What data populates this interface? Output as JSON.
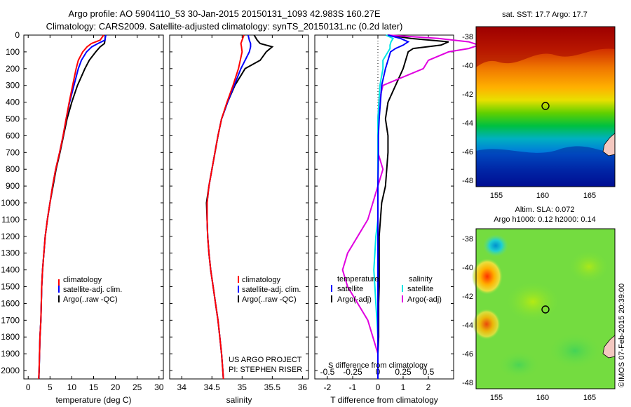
{
  "titles": {
    "line1": "Argo profile: AO 5904110_53 30-Jan-2015 20150131_1093 42.983S 160.27E",
    "line2": "Climatology: CARS2009. Satellite-adjusted climatology: synTS_20150131.nc (0.2d later)"
  },
  "colors": {
    "climatology": "#ff0000",
    "satellite": "#0000ff",
    "argo": "#000000",
    "sal_satellite": "#00e5e5",
    "sal_argo": "#e000e0"
  },
  "panels": {
    "temperature": {
      "xlabel": "temperature (deg C)",
      "legend": [
        "climatology",
        "satellite-adj. clim.",
        "Argo(..raw -QC)"
      ]
    },
    "salinity": {
      "xlabel": "salinity",
      "legend": [
        "climatology",
        "satellite-adj. clim.",
        "Argo(..raw -QC)"
      ],
      "credit1": "US ARGO PROJECT",
      "credit2": "PI: STEPHEN RISER"
    },
    "difference": {
      "xlabel": "T difference from climatology",
      "s_label": "S difference from climatology",
      "legend_t_title": "temperature",
      "legend_s_title": "salinity",
      "legend_t": [
        "satellite",
        "Argo(-adj)"
      ],
      "legend_s": [
        "satellite",
        "Argo(-adj)"
      ]
    }
  },
  "maps": {
    "sst_title": "sat. SST: 17.7  Argo: 17.7",
    "sla_title1": "Altim. SLA: 0.072",
    "sla_title2": "Argo h1000: 0.12 h2000: 0.14",
    "yticks": [
      "-38",
      "-40",
      "-42",
      "-44",
      "-46",
      "-48"
    ],
    "xticks": [
      "155",
      "160",
      "165"
    ],
    "stamp": "©IMOS 07-Feb-2015 20:39:00"
  },
  "chart_data": {
    "type": "line",
    "ylim": [
      2050,
      0
    ],
    "yticks": [
      0,
      100,
      200,
      300,
      400,
      500,
      600,
      700,
      800,
      900,
      1000,
      1100,
      1200,
      1300,
      1400,
      1500,
      1600,
      1700,
      1800,
      1900,
      2000
    ],
    "temperature": {
      "xlim": [
        -1,
        31
      ],
      "xticks": [
        0,
        5,
        10,
        15,
        20,
        25,
        30
      ],
      "depth": [
        0,
        30,
        50,
        70,
        100,
        150,
        200,
        300,
        400,
        500,
        600,
        700,
        800,
        900,
        1000,
        1100,
        1200,
        1300,
        1400,
        1500,
        1600,
        1700,
        1800,
        1900,
        2000,
        2050
      ],
      "climatology": [
        17.3,
        16.5,
        14.5,
        13.5,
        12.5,
        11.5,
        11.0,
        10.2,
        9.4,
        8.7,
        8.0,
        7.2,
        6.3,
        5.6,
        5.0,
        4.4,
        3.9,
        3.6,
        3.3,
        3.1,
        3.0,
        2.9,
        2.7,
        2.6,
        2.5,
        2.4
      ],
      "satellite": [
        17.8,
        17.6,
        16.0,
        14.6,
        13.4,
        12.2,
        11.5,
        10.5,
        9.5,
        8.7,
        8.0,
        7.2,
        6.3,
        5.6,
        5.0,
        4.4,
        3.9,
        3.6,
        3.3,
        3.1,
        3.0,
        2.9,
        2.7,
        2.6,
        2.5,
        2.4
      ],
      "argo": [
        17.7,
        17.6,
        17.5,
        16.5,
        15.5,
        14.0,
        13.0,
        11.3,
        10.0,
        8.9,
        8.1,
        7.3,
        6.4,
        5.7,
        5.0,
        4.4,
        3.9,
        3.6,
        3.3,
        3.1,
        3.0,
        2.9,
        2.7,
        2.6,
        2.5,
        2.45
      ]
    },
    "salinity": {
      "xlim": [
        33.8,
        36.1
      ],
      "xticks": [
        34,
        34.5,
        35,
        35.5,
        36
      ],
      "depth": [
        0,
        30,
        50,
        70,
        100,
        150,
        200,
        300,
        400,
        500,
        600,
        700,
        800,
        900,
        1000,
        1100,
        1200,
        1300,
        1400,
        1500,
        1600,
        1700,
        1800,
        1900,
        2000,
        2050
      ],
      "climatology": [
        35.03,
        35.0,
        34.98,
        34.99,
        35.0,
        34.97,
        34.94,
        34.85,
        34.75,
        34.66,
        34.6,
        34.55,
        34.5,
        34.45,
        34.42,
        34.42,
        34.43,
        34.45,
        34.48,
        34.52,
        34.56,
        34.6,
        34.63,
        34.66,
        34.68,
        34.69
      ],
      "satellite": [
        35.1,
        35.12,
        35.14,
        35.14,
        35.12,
        35.05,
        34.98,
        34.87,
        34.76,
        34.66,
        34.6,
        34.55,
        34.5,
        34.45,
        34.42,
        34.42,
        34.43,
        34.45,
        34.48,
        34.52,
        34.56,
        34.6,
        34.63,
        34.66,
        34.68,
        34.69
      ],
      "argo": [
        35.2,
        35.25,
        35.3,
        35.5,
        35.4,
        35.3,
        35.05,
        34.88,
        34.76,
        34.66,
        34.6,
        34.55,
        34.5,
        34.45,
        34.41,
        34.42,
        34.43,
        34.45,
        34.48,
        34.52,
        34.56,
        34.6,
        34.63,
        34.66,
        34.68,
        34.69
      ]
    },
    "difference": {
      "xlim": [
        -2.5,
        3.0
      ],
      "xticks": [
        -2,
        -1,
        0,
        1,
        2
      ],
      "s_xticks": [
        -0.5,
        -0.25,
        0,
        0.25,
        0.5
      ],
      "depth": [
        0,
        20,
        40,
        60,
        80,
        100,
        150,
        200,
        300,
        400,
        500,
        600,
        700,
        800,
        900,
        1000,
        1100,
        1200,
        1300,
        1400,
        1500,
        1600,
        1700,
        1800,
        1900,
        2000,
        2050
      ],
      "t_satellite": [
        0.4,
        0.9,
        1.2,
        1.0,
        0.7,
        0.5,
        0.4,
        0.3,
        0.15,
        0.1,
        0.05,
        0.02,
        0.02,
        0.01,
        0.0,
        0.0,
        0.0,
        0.0,
        0.0,
        0.0,
        0.0,
        0.0,
        0.0,
        0.0,
        0.0,
        0.0,
        0.0
      ],
      "t_argo": [
        0.4,
        1.3,
        2.8,
        2.5,
        1.4,
        1.2,
        1.1,
        1.0,
        0.7,
        0.4,
        0.3,
        0.4,
        0.4,
        0.35,
        0.3,
        0.15,
        0.1,
        0.05,
        0.05,
        0.05,
        0.05,
        0.03,
        0.03,
        0.03,
        0.0,
        0.0,
        0.0
      ],
      "s_satellite": [
        0.08,
        0.15,
        0.13,
        0.12,
        0.12,
        0.1,
        0.05,
        0.05,
        0.02,
        0.01,
        0.0,
        0.0,
        0.0,
        0.0,
        0.0,
        0.0,
        0.0,
        -0.02,
        -0.03,
        -0.04,
        -0.03,
        -0.02,
        -0.01,
        0.0,
        0.0,
        0.0,
        0.0
      ],
      "s_argo": [
        0.1,
        0.6,
        0.9,
        1.0,
        0.9,
        0.7,
        0.5,
        0.45,
        0.05,
        0.01,
        0.0,
        0.0,
        0.0,
        0.05,
        0.0,
        -0.05,
        -0.1,
        -0.2,
        -0.3,
        -0.35,
        -0.3,
        -0.2,
        -0.1,
        -0.05,
        0.0,
        0.0,
        0.0
      ]
    }
  }
}
